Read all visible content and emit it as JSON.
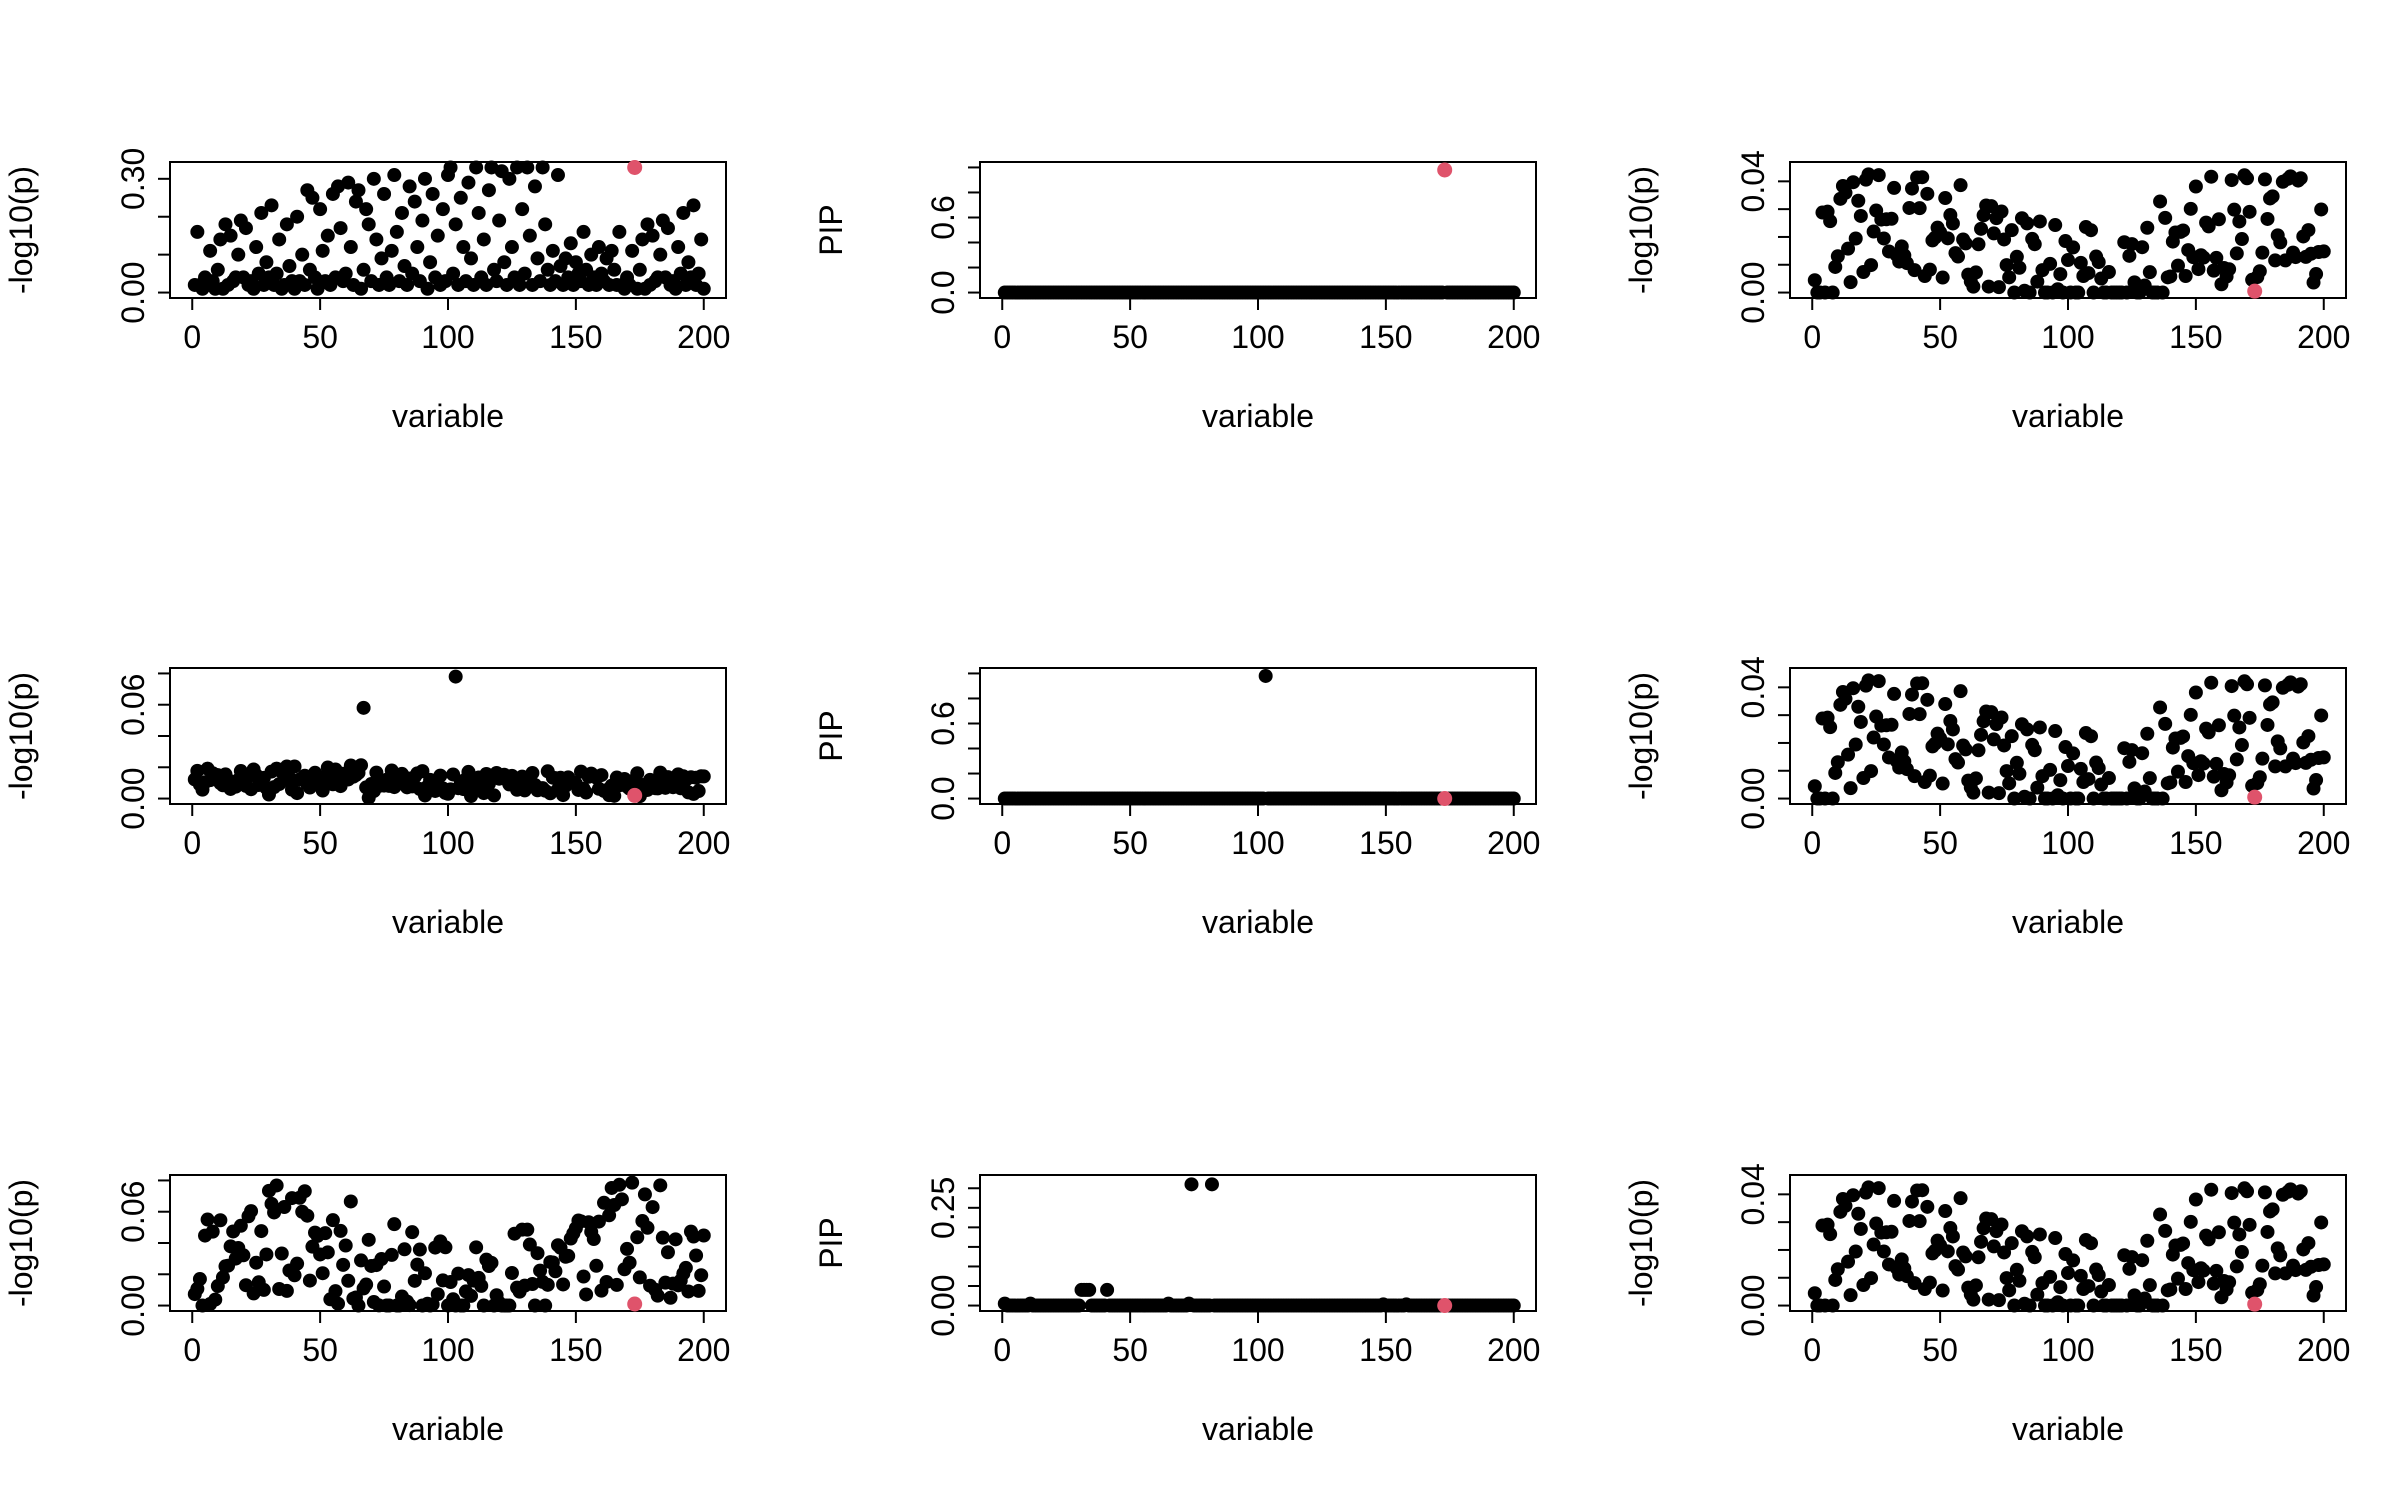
{
  "colors": {
    "point": "#000000",
    "highlight": "#DF536B",
    "axis": "#000000"
  },
  "highlight_x": 173,
  "chart_data": [
    {
      "panel": "row1-col1",
      "type": "scatter",
      "xlabel": "variable",
      "ylabel": "-log10(p)",
      "xlim": [
        0,
        200
      ],
      "ylim": [
        0,
        0.33
      ],
      "xticks": [
        0,
        50,
        100,
        150,
        200
      ],
      "yticks": [
        0.0,
        0.1,
        0.2,
        0.3
      ],
      "yticklabels": [
        "0.00",
        "",
        "",
        "0.30"
      ],
      "grid": false,
      "series": [
        {
          "values": [
            0.02,
            0.16,
            0.02,
            0.01,
            0.04,
            0.02,
            0.11,
            0.03,
            0.01,
            0.06,
            0.14,
            0.01,
            0.18,
            0.02,
            0.15,
            0.03,
            0.04,
            0.1,
            0.19,
            0.04,
            0.17,
            0.02,
            0.03,
            0.01,
            0.12,
            0.05,
            0.21,
            0.02,
            0.08,
            0.04,
            0.23,
            0.02,
            0.05,
            0.14,
            0.01,
            0.02,
            0.18,
            0.07,
            0.03,
            0.01,
            0.2,
            0.03,
            0.1,
            0.02,
            0.27,
            0.06,
            0.25,
            0.04,
            0.01,
            0.22,
            0.11,
            0.03,
            0.15,
            0.02,
            0.26,
            0.04,
            0.28,
            0.17,
            0.03,
            0.05,
            0.29,
            0.12,
            0.02,
            0.24,
            0.27,
            0.01,
            0.06,
            0.22,
            0.18,
            0.03,
            0.3,
            0.14,
            0.02,
            0.09,
            0.26,
            0.04,
            0.02,
            0.11,
            0.31,
            0.16,
            0.03,
            0.21,
            0.07,
            0.02,
            0.28,
            0.05,
            0.24,
            0.12,
            0.03,
            0.19,
            0.3,
            0.01,
            0.08,
            0.26,
            0.04,
            0.15,
            0.02,
            0.22,
            0.03,
            0.31,
            0.33,
            0.05,
            0.18,
            0.02,
            0.25,
            0.12,
            0.03,
            0.29,
            0.09,
            0.02,
            0.33,
            0.21,
            0.04,
            0.14,
            0.02,
            0.27,
            0.33,
            0.06,
            0.03,
            0.19,
            0.32,
            0.08,
            0.02,
            0.3,
            0.12,
            0.04,
            0.33,
            0.02,
            0.22,
            0.05,
            0.33,
            0.15,
            0.02,
            0.28,
            0.09,
            0.03,
            0.33,
            0.18,
            0.06,
            0.02,
            0.11,
            0.03,
            0.31,
            0.07,
            0.02,
            0.09,
            0.04,
            0.13,
            0.02,
            0.08,
            0.05,
            0.03,
            0.16,
            0.06,
            0.02,
            0.1,
            0.04,
            0.02,
            0.12,
            0.05,
            0.03,
            0.09,
            0.02,
            0.11,
            0.06
          ]
        }
      ],
      "highlight": {
        "x": 173,
        "y": 0.33
      }
    },
    {
      "panel": "row1-col2",
      "type": "scatter",
      "xlabel": "variable",
      "ylabel": "PIP",
      "xlim": [
        0,
        200
      ],
      "ylim": [
        0,
        1
      ],
      "xticks": [
        0,
        50,
        100,
        150,
        200
      ],
      "yticks": [
        0.0,
        0.2,
        0.4,
        0.6,
        0.8,
        1.0
      ],
      "yticklabels": [
        "0.0",
        "",
        "",
        "0.6",
        "",
        ""
      ],
      "grid": false,
      "series": [
        {
          "values": "all 200 at 0.0 except variable 173 = 1.0"
        }
      ],
      "highlight": {
        "x": 173,
        "y": 0.98
      }
    },
    {
      "panel": "row1-col3",
      "type": "scatter",
      "xlabel": "variable",
      "ylabel": "-log10(p)",
      "xlim": [
        0,
        200
      ],
      "ylim": [
        0,
        0.045
      ],
      "xticks": [
        0,
        50,
        100,
        150,
        200
      ],
      "yticks": [
        0.0,
        0.01,
        0.02,
        0.03,
        0.04
      ],
      "yticklabels": [
        "0.00",
        "",
        "",
        "",
        "0.04"
      ],
      "grid": false,
      "highlight": {
        "x": 173,
        "y": 0.0005
      }
    },
    {
      "panel": "row2-col1",
      "type": "scatter",
      "xlabel": "variable",
      "ylabel": "-log10(p)",
      "xlim": [
        0,
        200
      ],
      "ylim": [
        0,
        0.08
      ],
      "xticks": [
        0,
        50,
        100,
        150,
        200
      ],
      "yticks": [
        0.0,
        0.02,
        0.04,
        0.06,
        0.08
      ],
      "yticklabels": [
        "0.00",
        "",
        "",
        "0.06",
        ""
      ],
      "grid": false,
      "highlight": {
        "x": 173,
        "y": 0.002
      }
    },
    {
      "panel": "row2-col2",
      "type": "scatter",
      "xlabel": "variable",
      "ylabel": "PIP",
      "xlim": [
        0,
        200
      ],
      "ylim": [
        0,
        1
      ],
      "xticks": [
        0,
        50,
        100,
        150,
        200
      ],
      "yticks": [
        0.0,
        0.2,
        0.4,
        0.6,
        0.8,
        1.0
      ],
      "yticklabels": [
        "0.0",
        "",
        "",
        "0.6",
        "",
        ""
      ],
      "grid": false,
      "series": [
        {
          "values": "all 200 at 0.0 except variable 103 = 0.98"
        }
      ],
      "highlight": {
        "x": 173,
        "y": 0.0
      }
    },
    {
      "panel": "row2-col3",
      "type": "scatter",
      "xlabel": "variable",
      "ylabel": "-log10(p)",
      "xlim": [
        0,
        200
      ],
      "ylim": [
        0,
        0.045
      ],
      "xticks": [
        0,
        50,
        100,
        150,
        200
      ],
      "yticks": [
        0.0,
        0.01,
        0.02,
        0.03,
        0.04
      ],
      "yticklabels": [
        "0.00",
        "",
        "",
        "",
        "0.04"
      ],
      "grid": false,
      "highlight": {
        "x": 173,
        "y": 0.0005
      }
    },
    {
      "panel": "row3-col1",
      "type": "scatter",
      "xlabel": "variable",
      "ylabel": "-log10(p)",
      "xlim": [
        0,
        200
      ],
      "ylim": [
        0,
        0.08
      ],
      "xticks": [
        0,
        50,
        100,
        150,
        200
      ],
      "yticks": [
        0.0,
        0.02,
        0.04,
        0.06,
        0.08
      ],
      "yticklabels": [
        "0.00",
        "",
        "",
        "0.06",
        ""
      ],
      "grid": false,
      "highlight": {
        "x": 173,
        "y": 0.001
      }
    },
    {
      "panel": "row3-col2",
      "type": "scatter",
      "xlabel": "variable",
      "ylabel": "PIP",
      "xlim": [
        0,
        200
      ],
      "ylim": [
        0,
        0.32
      ],
      "xticks": [
        0,
        50,
        100,
        150,
        200
      ],
      "yticks": [
        0.0,
        0.05,
        0.1,
        0.15,
        0.2,
        0.25,
        0.3
      ],
      "yticklabels": [
        "0.00",
        "",
        "",
        "",
        "",
        "0.25",
        ""
      ],
      "grid": false,
      "series": [
        {
          "values": "mostly 0.0; variables 31-35 and 41 near 0.04; variables 74 and 82 near 0.31"
        }
      ],
      "highlight": {
        "x": 173,
        "y": 0.0
      }
    },
    {
      "panel": "row3-col3",
      "type": "scatter",
      "xlabel": "variable",
      "ylabel": "-log10(p)",
      "xlim": [
        0,
        200
      ],
      "ylim": [
        0,
        0.045
      ],
      "xticks": [
        0,
        50,
        100,
        150,
        200
      ],
      "yticks": [
        0.0,
        0.01,
        0.02,
        0.03,
        0.04
      ],
      "yticklabels": [
        "0.00",
        "",
        "",
        "",
        "0.04"
      ],
      "grid": false,
      "highlight": {
        "x": 173,
        "y": 0.0005
      }
    }
  ]
}
